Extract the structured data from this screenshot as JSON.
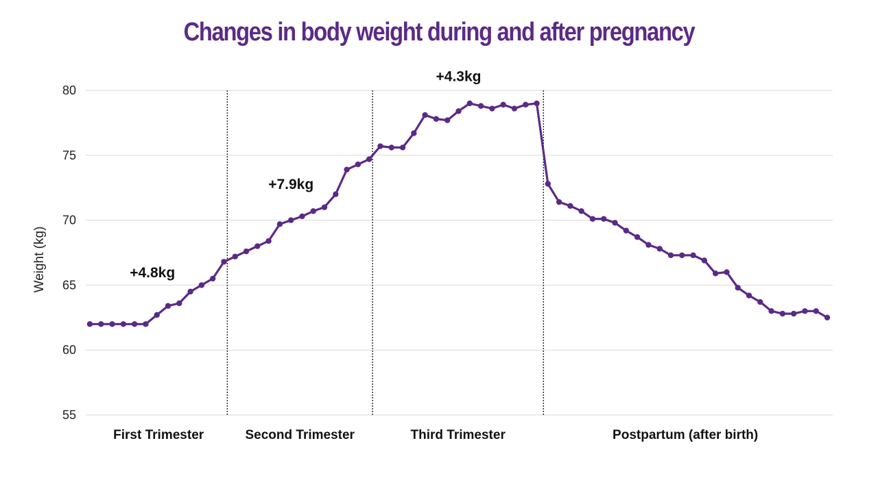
{
  "page_title": "Changes in body weight during and after pregnancy",
  "colors": {
    "title": "#5b2a86",
    "line": "#5b2a86",
    "grid": "#d9d9d9",
    "divider": "#222222"
  },
  "chart_data": {
    "type": "line",
    "title": "Changes in body weight during and after pregnancy",
    "xlabel": "",
    "ylabel": "Weight (kg)",
    "ylim": [
      55,
      80
    ],
    "yticks": [
      55,
      60,
      65,
      70,
      75,
      80
    ],
    "grid": true,
    "series": [
      {
        "name": "Weight",
        "values": [
          62.0,
          62.0,
          62.0,
          62.0,
          62.0,
          62.0,
          62.7,
          63.4,
          63.6,
          64.5,
          65.0,
          65.5,
          66.8,
          67.2,
          67.6,
          68.0,
          68.4,
          69.7,
          70.0,
          70.3,
          70.7,
          71.0,
          72.0,
          73.9,
          74.3,
          74.7,
          75.7,
          75.6,
          75.6,
          76.7,
          78.1,
          77.8,
          77.7,
          78.4,
          79.0,
          78.8,
          78.6,
          78.9,
          78.6,
          78.9,
          79.0,
          72.8,
          71.4,
          71.1,
          70.7,
          70.1,
          70.1,
          69.8,
          69.2,
          68.7,
          68.1,
          67.8,
          67.3,
          67.3,
          67.3,
          66.9,
          65.9,
          66.0,
          64.8,
          64.2,
          63.7,
          63.0,
          62.8,
          62.8,
          63.0,
          63.0,
          62.5
        ]
      }
    ],
    "phases": [
      {
        "label": "First Trimester",
        "start": 0,
        "end": 12.3
      },
      {
        "label": "Second Trimester",
        "start": 12.3,
        "end": 25.3
      },
      {
        "label": "Third Trimester",
        "start": 25.3,
        "end": 40.6
      },
      {
        "label": "Postpartum (after birth)",
        "start": 40.6,
        "end": 66
      }
    ],
    "dividers": [
      12.3,
      25.3,
      40.6
    ],
    "annotations": [
      {
        "text": "+4.8kg",
        "x": 5.6,
        "y": 65.6
      },
      {
        "text": "+7.9kg",
        "x": 18.0,
        "y": 72.4
      },
      {
        "text": "+4.3kg",
        "x": 33.0,
        "y": 80.7
      }
    ]
  }
}
